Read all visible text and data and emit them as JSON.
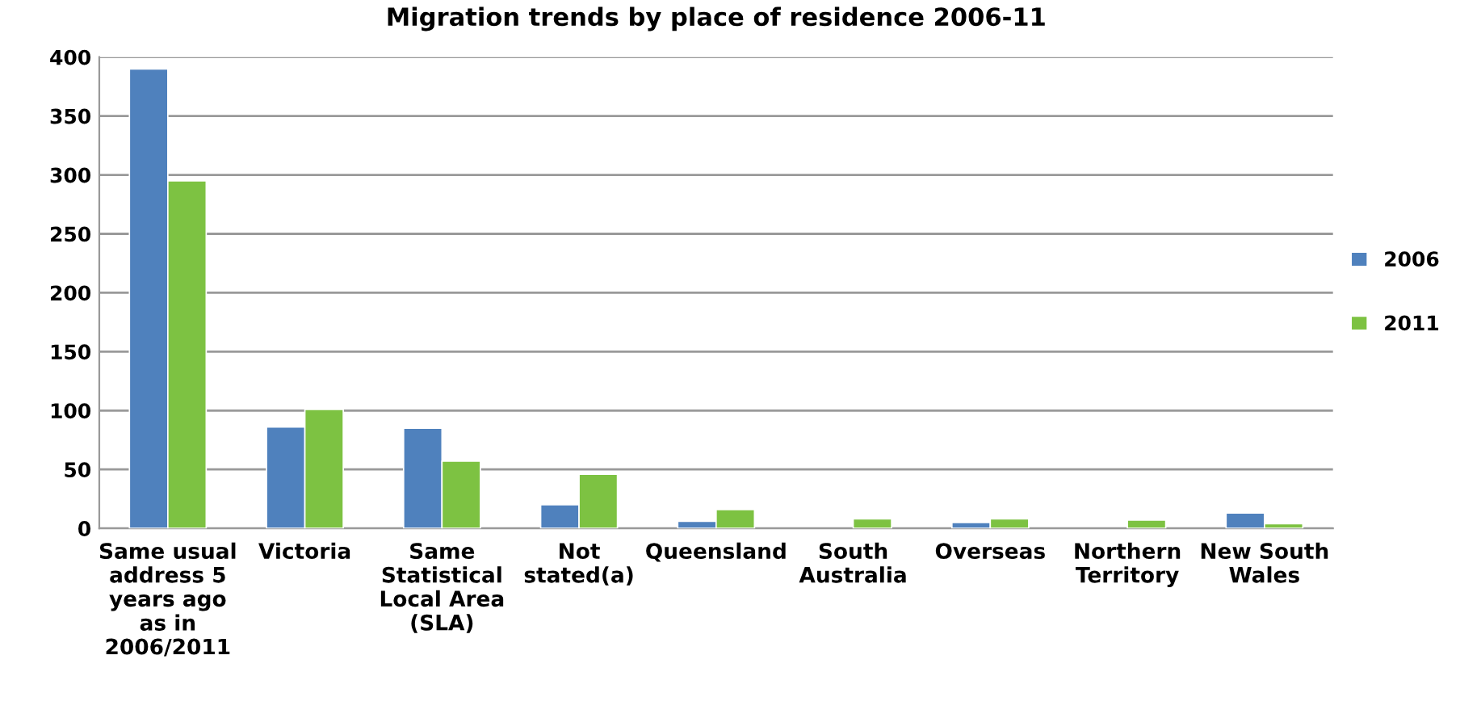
{
  "chart_data": {
    "type": "bar",
    "title": "Migration trends by place of residence 2006-11",
    "categories": [
      "Same usual address 5 years ago as in 2006/2011",
      "Victoria",
      "Same Statistical Local Area (SLA)",
      "Not stated(a)",
      "Queensland",
      "South Australia",
      "Overseas",
      "Northern Territory",
      "New South Wales"
    ],
    "series": [
      {
        "name": "2006",
        "color": "#4f81bd",
        "values": [
          390,
          86,
          85,
          20,
          6,
          null,
          5,
          null,
          13
        ]
      },
      {
        "name": "2011",
        "color": "#7dc242",
        "values": [
          295,
          101,
          57,
          46,
          16,
          8,
          8,
          7,
          4
        ]
      }
    ],
    "ylim": [
      0,
      400
    ],
    "yticks": [
      0,
      50,
      100,
      150,
      200,
      250,
      300,
      350,
      400
    ],
    "grid": "y",
    "legend": "right"
  }
}
